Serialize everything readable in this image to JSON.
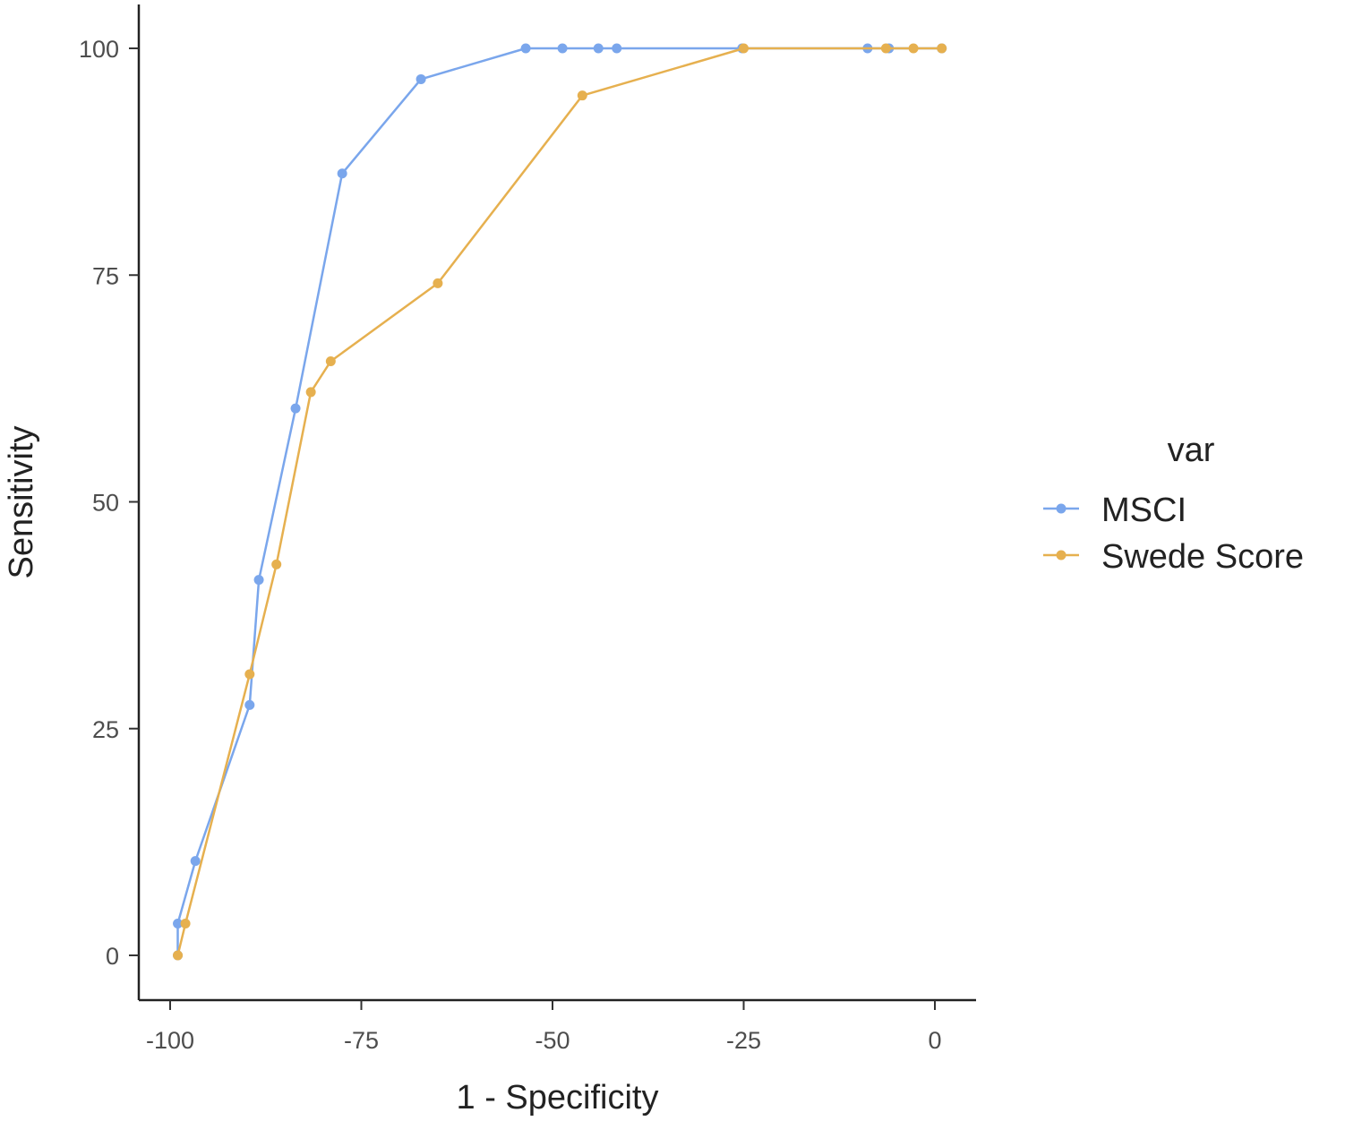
{
  "chart_data": {
    "type": "line",
    "title": "",
    "xlabel": "1 - Specificity",
    "ylabel": "Sensitivity",
    "xlim": [
      -102,
      5
    ],
    "ylim": [
      -5,
      105
    ],
    "x_ticks": [
      -100,
      -75,
      -50,
      -25,
      0
    ],
    "y_ticks": [
      0,
      25,
      50,
      75,
      100
    ],
    "grid": false,
    "legend": {
      "title": "var",
      "position": "right"
    },
    "series": [
      {
        "name": "MSCI",
        "color": "#7AA6EC",
        "points": [
          [
            -99.0,
            0.0
          ],
          [
            -99.0,
            3.5
          ],
          [
            -96.7,
            10.4
          ],
          [
            -89.6,
            27.6
          ],
          [
            -88.4,
            41.4
          ],
          [
            -83.6,
            60.3
          ],
          [
            -77.5,
            86.2
          ],
          [
            -67.2,
            96.6
          ],
          [
            -53.5,
            100
          ],
          [
            -48.7,
            100
          ],
          [
            -44.0,
            100
          ],
          [
            -41.6,
            100
          ],
          [
            -25.2,
            100
          ],
          [
            -8.8,
            100
          ],
          [
            -6.0,
            100
          ],
          [
            0.9,
            100
          ]
        ]
      },
      {
        "name": "Swede Score",
        "color": "#E6B04F",
        "points": [
          [
            -99.0,
            0.0
          ],
          [
            -98.0,
            3.5
          ],
          [
            -89.6,
            31.0
          ],
          [
            -86.1,
            43.1
          ],
          [
            -81.6,
            62.1
          ],
          [
            -79.0,
            65.5
          ],
          [
            -65.0,
            74.1
          ],
          [
            -46.1,
            94.8
          ],
          [
            -25.0,
            100
          ],
          [
            -6.4,
            100
          ],
          [
            -2.8,
            100
          ],
          [
            0.9,
            100
          ]
        ]
      }
    ]
  }
}
